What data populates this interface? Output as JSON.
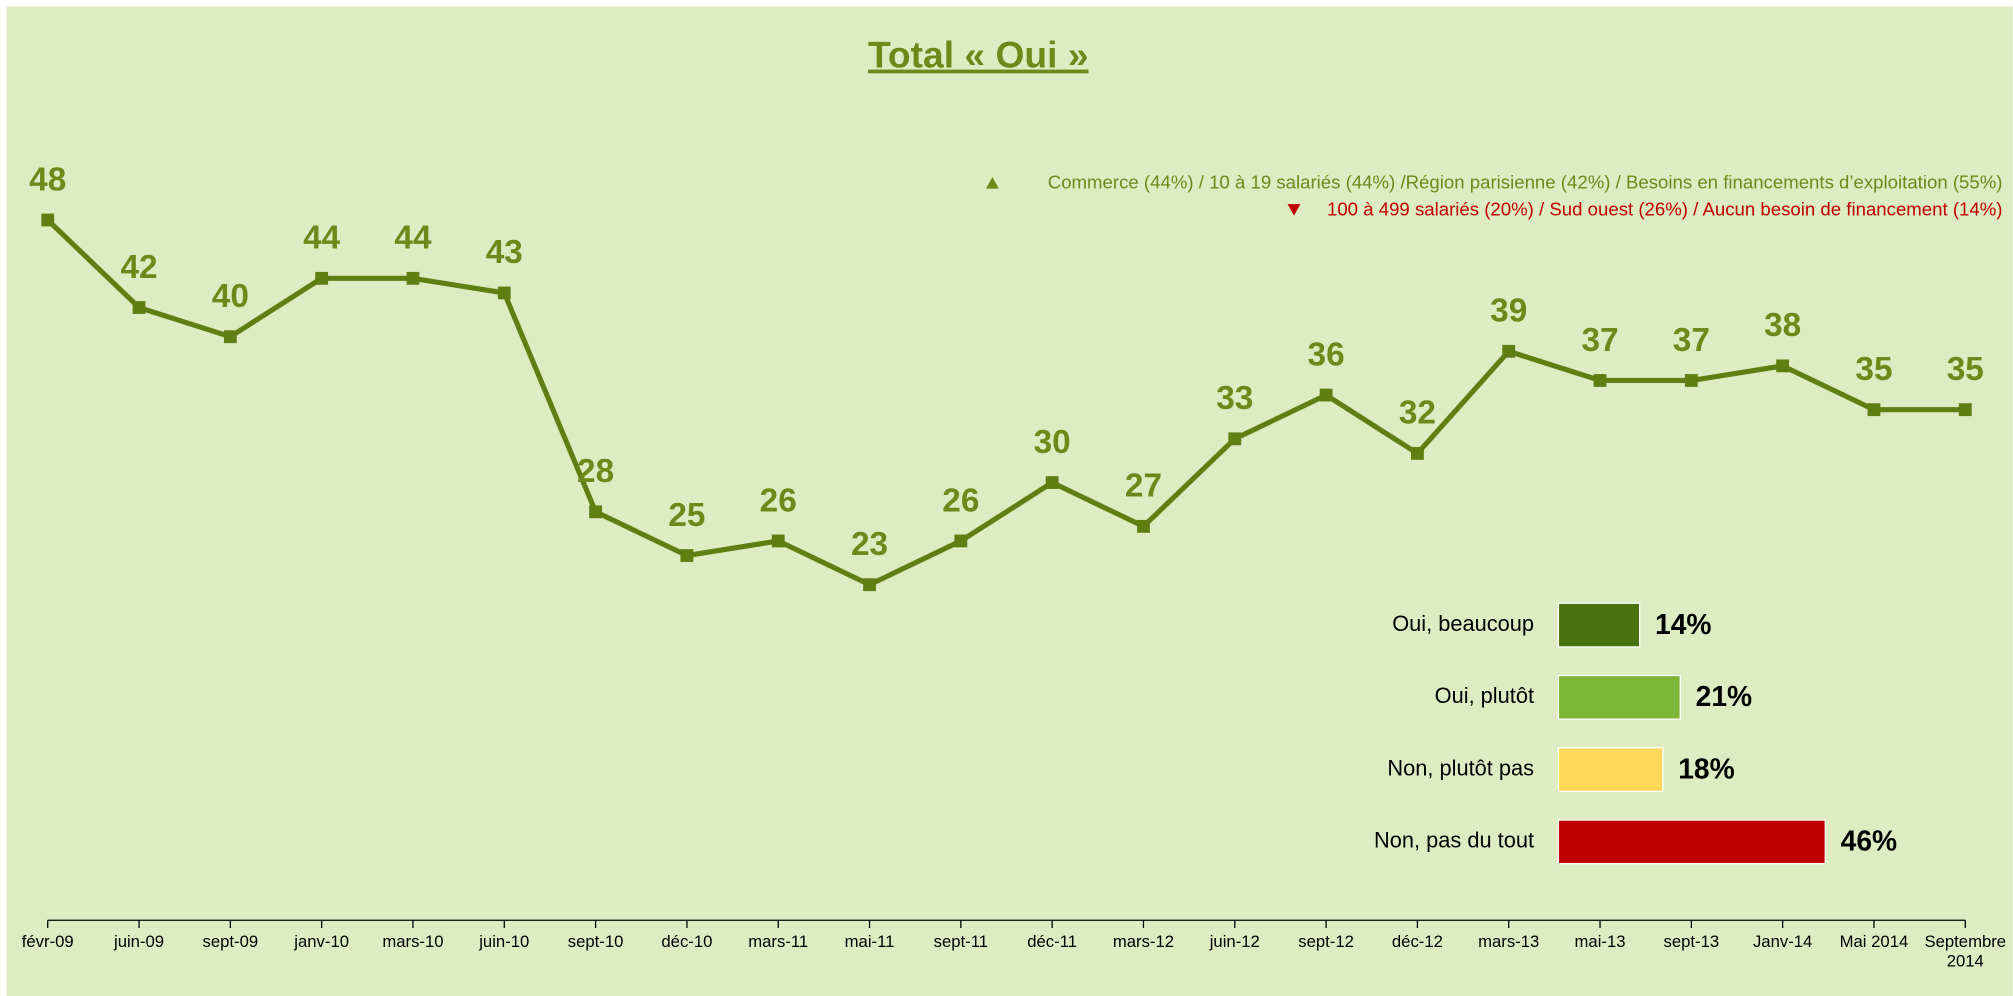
{
  "chart_data": [
    {
      "type": "line",
      "title": "Total « Oui »",
      "categories": [
        "févr-09",
        "juin-09",
        "sept-09",
        "janv-10",
        "mars-10",
        "juin-10",
        "sept-10",
        "déc-10",
        "mars-11",
        "mai-11",
        "sept-11",
        "déc-11",
        "mars-12",
        "juin-12",
        "sept-12",
        "déc-12",
        "mars-13",
        "mai-13",
        "sept-13",
        "Janv-14",
        "Mai 2014",
        "Septembre 2014"
      ],
      "series": [
        {
          "name": "Total « Oui »",
          "color": "#5f7f12",
          "values": [
            48,
            42,
            40,
            44,
            44,
            43,
            28,
            25,
            26,
            23,
            26,
            30,
            27,
            33,
            36,
            32,
            39,
            37,
            37,
            38,
            35,
            35
          ]
        }
      ],
      "ylim": [
        0,
        60
      ],
      "annotations": [
        {
          "text": "Commerce (44%) / 10 à 19 salariés (44%) /Région parisienne (42%) / Besoins en financements  d’exploitation (55%)",
          "color": "#6b8a1a"
        },
        {
          "text": "100 à 499 salariés (20%) / Sud ouest (26%) / Aucun besoin de financement (14%)",
          "color": "#c00000"
        }
      ]
    },
    {
      "type": "hbar",
      "categories": [
        "Oui, beaucoup",
        "Oui, plutôt",
        "Non, plutôt pas",
        "Non, pas du tout"
      ],
      "values": [
        14,
        21,
        18,
        46
      ],
      "value_labels": [
        "14%",
        "21%",
        "18%",
        "46%"
      ],
      "colors": [
        "#48730f",
        "#7db536",
        "#ffd85a",
        "#c00000"
      ],
      "xlim": [
        0,
        100
      ]
    }
  ]
}
